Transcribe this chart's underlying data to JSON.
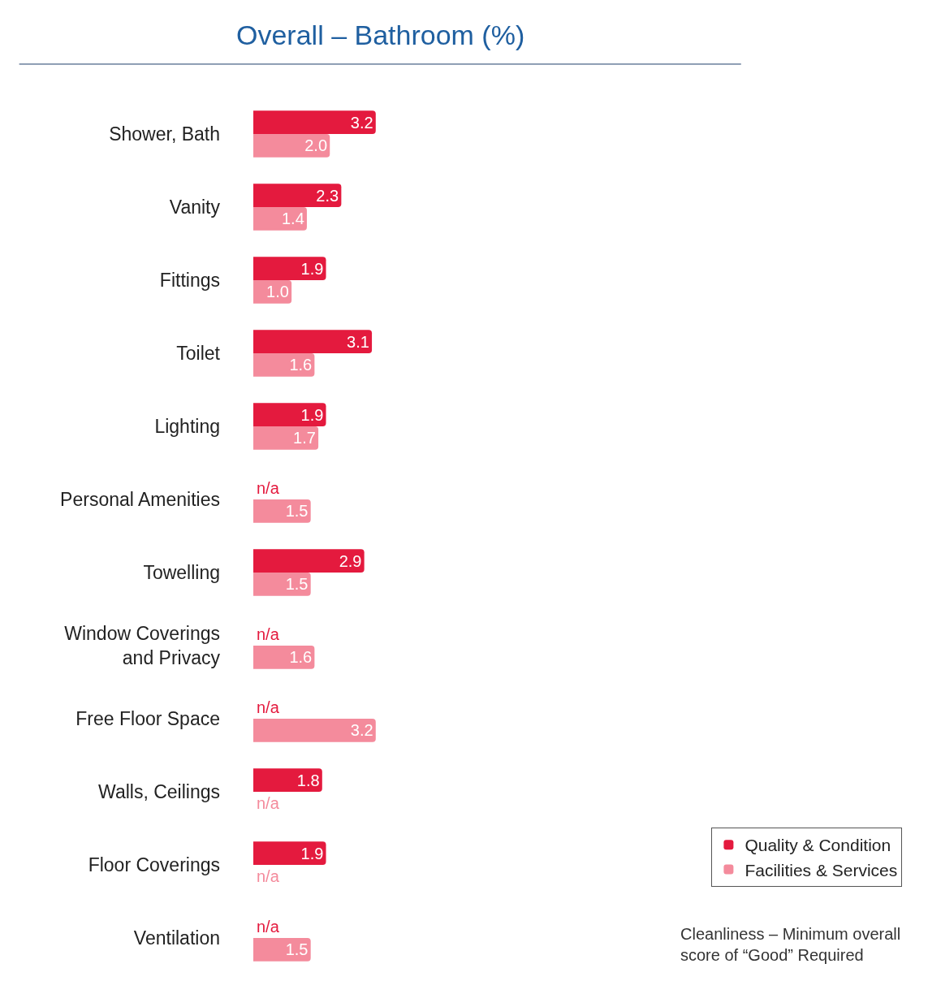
{
  "chart_data": {
    "type": "bar",
    "orientation": "horizontal",
    "title": "Overall – Bathroom (%)",
    "categories": [
      "Shower, Bath",
      "Vanity",
      "Fittings",
      "Toilet",
      "Lighting",
      "Personal Amenities",
      "Towelling",
      "Window Coverings and Privacy",
      "Free Floor Space",
      "Walls, Ceilings",
      "Floor Coverings",
      "Ventilation"
    ],
    "series": [
      {
        "name": "Quality & Condition",
        "color": "#e41a3e",
        "values": [
          3.2,
          2.3,
          1.9,
          3.1,
          1.9,
          null,
          2.9,
          null,
          null,
          1.8,
          1.9,
          null
        ],
        "value_labels": [
          "3.2",
          "2.3",
          "1.9",
          "3.1",
          "1.9",
          "n/a",
          "2.9",
          "n/a",
          "n/a",
          "1.8",
          "1.9",
          "n/a"
        ]
      },
      {
        "name": "Facilities & Services",
        "color": "#f48b9c",
        "values": [
          2.0,
          1.4,
          1.0,
          1.6,
          1.7,
          1.5,
          1.5,
          1.6,
          3.2,
          null,
          null,
          1.5
        ],
        "value_labels": [
          "2.0",
          "1.4",
          "1.0",
          "1.6",
          "1.7",
          "1.5",
          "1.5",
          "1.6",
          "3.2",
          "n/a",
          "n/a",
          "1.5"
        ]
      }
    ],
    "xlim": [
      0,
      17
    ],
    "tick_labels": "y",
    "legend": "bottom right",
    "annotations": [
      "Cleanliness – Minimum overall score of “Good” Required"
    ]
  }
}
